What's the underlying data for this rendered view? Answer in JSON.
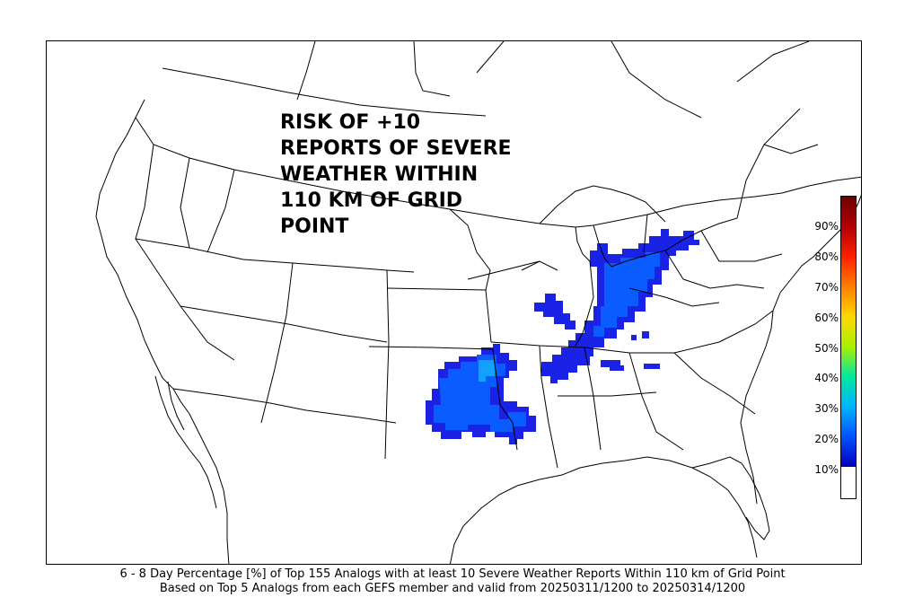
{
  "title_lines": [
    "RISK OF +10",
    "REPORTS OF SEVERE",
    "WEATHER WITHIN",
    "110 KM OF GRID",
    "POINT"
  ],
  "caption": {
    "line1": "6 - 8 Day  Percentage [%] of Top 155 Analogs with at least 10 Severe Weather Reports Within 110 km of Grid Point",
    "line2": "Based on Top 5 Analogs from each GEFS member and valid from 20250311/1200 to 20250314/1200"
  },
  "colorbar": {
    "ticks": [
      "10%",
      "20%",
      "30%",
      "40%",
      "50%",
      "60%",
      "70%",
      "80%",
      "90%"
    ],
    "colors": [
      "#0000b8",
      "#0050ff",
      "#00b4ff",
      "#00e8a0",
      "#a8f000",
      "#ffd800",
      "#ff8000",
      "#ff2000",
      "#b00000",
      "#700000"
    ]
  },
  "risk_colors": {
    "low": "#1a22e6",
    "mid": "#0a5cff",
    "high": "#14a0ff"
  }
}
